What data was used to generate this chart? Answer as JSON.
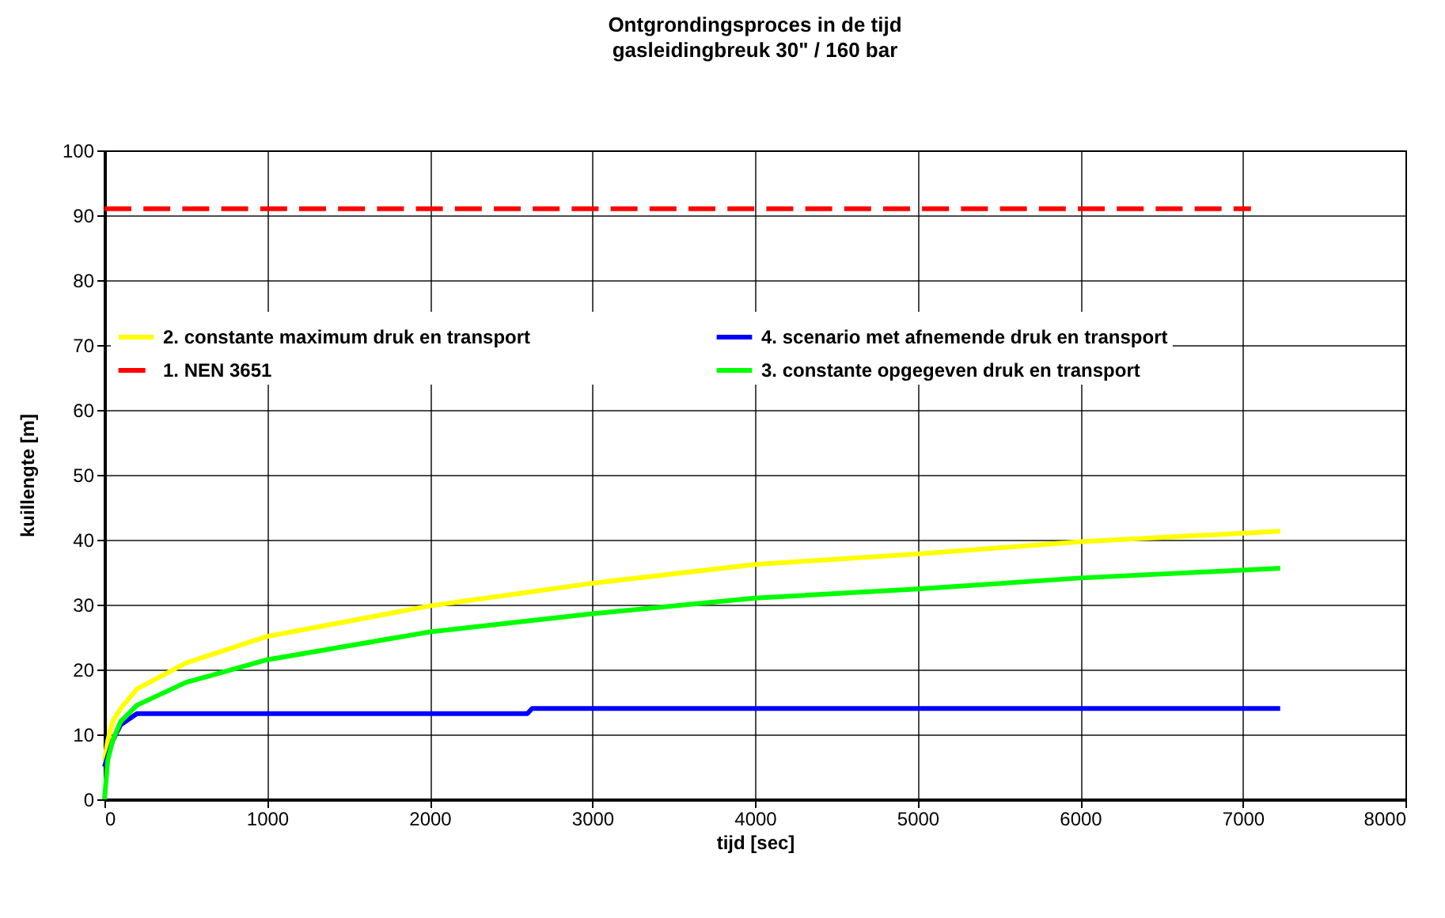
{
  "chart_data": {
    "type": "line",
    "title": "Ontgrondingsproces in de tijd",
    "subtitle": "gasleidingbreuk 30\" / 160 bar",
    "xlabel": "tijd [sec]",
    "ylabel": "kuillengte [m]",
    "xlim": [
      0,
      8000
    ],
    "xticks": [
      0,
      1000,
      2000,
      3000,
      4000,
      5000,
      6000,
      7000,
      8000
    ],
    "ylim": [
      0,
      100
    ],
    "yticks": [
      0,
      10,
      20,
      30,
      40,
      50,
      60,
      70,
      80,
      90,
      100
    ],
    "grid": true,
    "legend": "top",
    "marker": "none",
    "series": [
      {
        "name": "2. constante maximum druk en transport",
        "color": "#ffff00",
        "line_style": "solid",
        "x": [
          0,
          20,
          50,
          100,
          200,
          500,
          1000,
          2000,
          3000,
          4000,
          5000,
          6000,
          7230
        ],
        "values": [
          6,
          9,
          12,
          14,
          17,
          21,
          25.1,
          29.8,
          33.3,
          36.2,
          37.8,
          39.7,
          41.3
        ]
      },
      {
        "name": "4. scenario met afnemende druk en transport",
        "color": "#0000ff",
        "line_style": "solid",
        "x": [
          0,
          50,
          100,
          200,
          1000,
          2000,
          2600,
          2630,
          4000,
          6000,
          7230
        ],
        "values": [
          5,
          9,
          11.5,
          13.2,
          13.2,
          13.2,
          13.2,
          14,
          14,
          14,
          14
        ]
      },
      {
        "name": "1. NEN 3651",
        "color": "#ff0000",
        "line_style": "dashed",
        "x": [
          0,
          7050
        ],
        "values": [
          91,
          91
        ]
      },
      {
        "name": "3. constante opgegeven druk en transport",
        "color": "#00ff00",
        "line_style": "solid",
        "x": [
          0,
          20,
          50,
          100,
          200,
          500,
          1000,
          2000,
          3000,
          4000,
          5000,
          6000,
          7230
        ],
        "values": [
          0,
          6,
          9,
          12,
          14.5,
          18,
          21.5,
          25.8,
          28.6,
          31,
          32.4,
          34.1,
          35.6
        ]
      }
    ]
  }
}
